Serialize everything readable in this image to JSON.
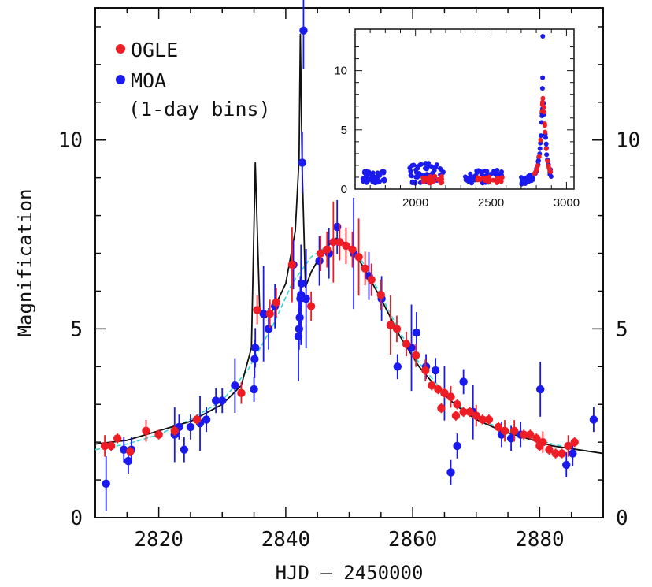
{
  "chart_data": {
    "type": "scatter",
    "title": "",
    "xlabel": "HJD – 2450000",
    "ylabel": "Magnification",
    "xlim": [
      2810,
      2890
    ],
    "ylim": [
      0,
      13.5
    ],
    "xticks": [
      2820,
      2840,
      2860,
      2880
    ],
    "yticks_left": [
      0,
      5,
      10
    ],
    "yticks_right": [
      0,
      5,
      10
    ],
    "grid": false,
    "legend": {
      "position": "top-left",
      "entries": [
        {
          "label": "OGLE",
          "color": "#ee1c25"
        },
        {
          "label": "MOA",
          "color": "#1a1aee"
        },
        {
          "label": "(1-day bins)",
          "color": ""
        }
      ]
    },
    "colors": {
      "ogle": "#ee1c25",
      "moa": "#1a1aee",
      "model": "#111111",
      "alt_model": "#33d6d6"
    },
    "series": [
      {
        "name": "OGLE",
        "marker": "circle",
        "points": [
          [
            2811.5,
            1.9
          ],
          [
            2812.5,
            1.9
          ],
          [
            2813.5,
            2.1
          ],
          [
            2815.5,
            1.75
          ],
          [
            2818,
            2.3
          ],
          [
            2820,
            2.2
          ],
          [
            2822.5,
            2.3
          ],
          [
            2826,
            2.6
          ],
          [
            2833,
            3.3
          ],
          [
            2835.5,
            5.5
          ],
          [
            2837.5,
            5.4
          ],
          [
            2838.5,
            5.7
          ],
          [
            2841,
            6.7
          ],
          [
            2844,
            5.6
          ],
          [
            2845.5,
            7.0
          ],
          [
            2846.5,
            7.1
          ],
          [
            2847.5,
            7.3
          ],
          [
            2848.5,
            7.3
          ],
          [
            2849.5,
            7.2
          ],
          [
            2850.5,
            7.1
          ],
          [
            2851.5,
            6.9
          ],
          [
            2852.5,
            6.6
          ],
          [
            2853.5,
            6.3
          ],
          [
            2855,
            5.9
          ],
          [
            2856.5,
            5.1
          ],
          [
            2857.5,
            5.0
          ],
          [
            2859,
            4.6
          ],
          [
            2860.5,
            4.3
          ],
          [
            2862,
            3.9
          ],
          [
            2863,
            3.5
          ],
          [
            2864,
            3.4
          ],
          [
            2865,
            3.3
          ],
          [
            2866,
            3.2
          ],
          [
            2867,
            3.0
          ],
          [
            2868,
            2.8
          ],
          [
            2869,
            2.8
          ],
          [
            2870,
            2.7
          ],
          [
            2871,
            2.6
          ],
          [
            2872,
            2.6
          ],
          [
            2873.5,
            2.4
          ],
          [
            2876,
            2.3
          ],
          [
            2877.5,
            2.2
          ],
          [
            2878.5,
            2.2
          ],
          [
            2879.5,
            2.1
          ],
          [
            2880.5,
            2.0
          ],
          [
            2881.5,
            1.8
          ],
          [
            2882.5,
            1.7
          ],
          [
            2883.5,
            1.7
          ],
          [
            2884.5,
            1.9
          ],
          [
            2885.5,
            2.0
          ],
          [
            2864.5,
            2.9
          ],
          [
            2866.8,
            2.7
          ],
          [
            2874.5,
            2.3
          ],
          [
            2880,
            1.9
          ]
        ]
      },
      {
        "name": "MOA",
        "marker": "circle",
        "points": [
          [
            2811.7,
            0.9
          ],
          [
            2814.5,
            1.8
          ],
          [
            2815.2,
            1.5
          ],
          [
            2815.7,
            1.8
          ],
          [
            2822.5,
            2.2
          ],
          [
            2823.2,
            2.4
          ],
          [
            2824,
            1.8
          ],
          [
            2825,
            2.4
          ],
          [
            2826.5,
            2.5
          ],
          [
            2827.5,
            2.6
          ],
          [
            2829,
            3.1
          ],
          [
            2830,
            3.1
          ],
          [
            2832,
            3.5
          ],
          [
            2835,
            3.4
          ],
          [
            2835.1,
            4.2
          ],
          [
            2835.2,
            4.5
          ],
          [
            2836.5,
            5.4
          ],
          [
            2837.3,
            5.0
          ],
          [
            2838.3,
            5.6
          ],
          [
            2841.2,
            6.7
          ],
          [
            2842,
            4.8
          ],
          [
            2842.1,
            5.0
          ],
          [
            2842.2,
            5.3
          ],
          [
            2842.3,
            5.8
          ],
          [
            2842.4,
            5.9
          ],
          [
            2842.5,
            6.2
          ],
          [
            2842.6,
            9.4
          ],
          [
            2842.8,
            12.9
          ],
          [
            2843.2,
            5.8
          ],
          [
            2845.3,
            6.8
          ],
          [
            2846.8,
            7.0
          ],
          [
            2848.1,
            7.7
          ],
          [
            2850.7,
            7.0
          ],
          [
            2853.1,
            6.4
          ],
          [
            2855.1,
            5.8
          ],
          [
            2857.6,
            4.0
          ],
          [
            2859.8,
            4.5
          ],
          [
            2860.6,
            4.9
          ],
          [
            2862.1,
            4.0
          ],
          [
            2863.6,
            3.9
          ],
          [
            2865,
            3.3
          ],
          [
            2866,
            1.2
          ],
          [
            2867,
            1.9
          ],
          [
            2868,
            3.6
          ],
          [
            2869.5,
            2.8
          ],
          [
            2874,
            2.2
          ],
          [
            2875.5,
            2.1
          ],
          [
            2877,
            2.2
          ],
          [
            2880.1,
            3.4
          ],
          [
            2884.2,
            1.4
          ],
          [
            2885.2,
            1.7
          ],
          [
            2888.5,
            2.6
          ]
        ]
      },
      {
        "name": "",
        "type": "line",
        "points": [
          [
            2810,
            1.95
          ],
          [
            2815,
            2.05
          ],
          [
            2820,
            2.3
          ],
          [
            2825,
            2.55
          ],
          [
            2830,
            3.0
          ],
          [
            2833,
            3.5
          ],
          [
            2834.6,
            4.5
          ],
          [
            2835.2,
            9.4
          ],
          [
            2835.9,
            5.5
          ],
          [
            2836.8,
            5.3
          ],
          [
            2838,
            5.5
          ],
          [
            2840,
            6.2
          ],
          [
            2841.5,
            7.6
          ],
          [
            2842.1,
            9.5
          ],
          [
            2842.3,
            12.8
          ],
          [
            2842.6,
            9.2
          ],
          [
            2843.1,
            6.1
          ],
          [
            2844,
            6.5
          ],
          [
            2846,
            7.1
          ],
          [
            2848,
            7.4
          ],
          [
            2850,
            7.2
          ],
          [
            2852,
            6.7
          ],
          [
            2855,
            5.8
          ],
          [
            2858,
            4.8
          ],
          [
            2861,
            4.0
          ],
          [
            2864,
            3.4
          ],
          [
            2867,
            2.95
          ],
          [
            2870,
            2.6
          ],
          [
            2874,
            2.3
          ],
          [
            2878,
            2.1
          ],
          [
            2882,
            1.9
          ],
          [
            2886,
            1.8
          ],
          [
            2890,
            1.7
          ]
        ]
      },
      {
        "name": "",
        "type": "line",
        "points": [
          [
            2810,
            1.8
          ],
          [
            2815,
            1.95
          ],
          [
            2820,
            2.2
          ],
          [
            2825,
            2.6
          ],
          [
            2830,
            3.1
          ],
          [
            2834,
            3.9
          ],
          [
            2838,
            5.1
          ],
          [
            2841,
            6.2
          ],
          [
            2844,
            6.9
          ],
          [
            2847,
            7.25
          ],
          [
            2849,
            7.3
          ],
          [
            2852,
            6.8
          ],
          [
            2855,
            5.9
          ],
          [
            2858,
            4.9
          ],
          [
            2861,
            4.1
          ],
          [
            2864,
            3.5
          ],
          [
            2867,
            3.0
          ],
          [
            2870,
            2.65
          ],
          [
            2874,
            2.35
          ],
          [
            2878,
            2.15
          ],
          [
            2882,
            1.95
          ],
          [
            2886,
            1.8
          ],
          [
            2890,
            1.7
          ]
        ]
      }
    ],
    "inset": {
      "type": "scatter",
      "xlim": [
        1600,
        3050
      ],
      "ylim": [
        0,
        13.5
      ],
      "xticks": [
        2000,
        2500,
        3000
      ],
      "yticks": [
        0,
        5,
        10
      ],
      "segments": [
        {
          "x": [
            1650,
            1800
          ],
          "y_min": 0.1,
          "y_max": 1.5
        },
        {
          "x": [
            1960,
            2190
          ],
          "y_min": 0.1,
          "y_max": 2.2
        },
        {
          "x": [
            2330,
            2580
          ],
          "y_min": 0.1,
          "y_max": 1.6
        },
        {
          "x": [
            2700,
            2900
          ],
          "y_min": 0.1,
          "y_max": 13.0
        }
      ]
    }
  }
}
